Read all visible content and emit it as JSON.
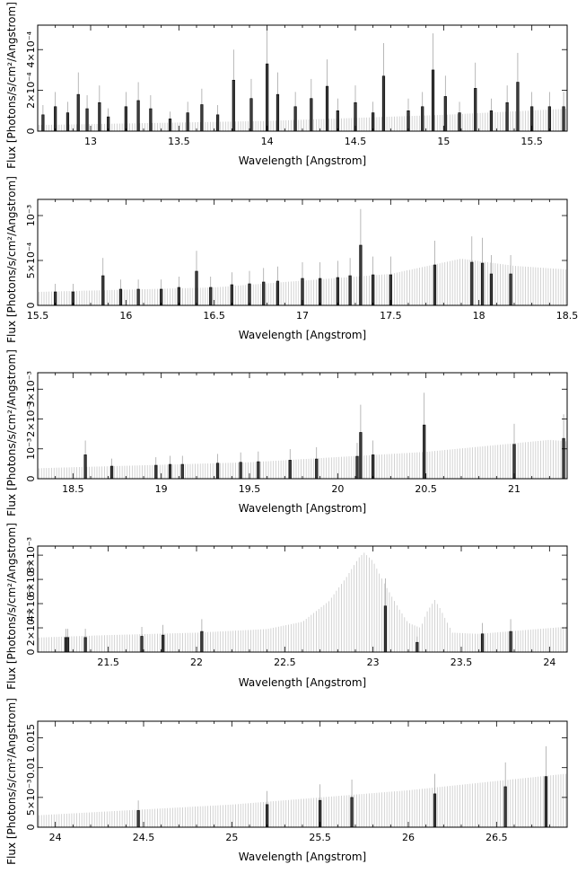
{
  "figure": {
    "xlabel": "Wavelength [Angstrom]",
    "ylabel": "Flux [Photons/s/cm²/Angstrom]"
  },
  "chart_data": [
    {
      "type": "bar",
      "xlabel": "Wavelength [Angstrom]",
      "ylabel": "Flux [Photons/s/cm²/Angstrom]",
      "xlim": [
        12.7,
        15.7
      ],
      "ylim": [
        0,
        0.00052
      ],
      "xticks": [
        13,
        13.5,
        14,
        14.5,
        15,
        15.5
      ],
      "xtick_labels": [
        "13",
        "13.5",
        "14",
        "14.5",
        "15",
        "15.5"
      ],
      "yticks": [
        0,
        0.0002,
        0.0004
      ],
      "ytick_labels": [
        "0",
        "2×10⁻⁴",
        "4×10⁻⁴"
      ],
      "continuum": {
        "x": [
          12.7,
          14.0,
          15.0,
          15.7
        ],
        "y": [
          3e-05,
          5e-05,
          8e-05,
          0.00011
        ]
      },
      "lines": [
        {
          "x": 12.73,
          "y": 8e-05
        },
        {
          "x": 12.8,
          "y": 0.00012
        },
        {
          "x": 12.87,
          "y": 9e-05
        },
        {
          "x": 12.93,
          "y": 0.00018
        },
        {
          "x": 12.98,
          "y": 0.00011
        },
        {
          "x": 13.05,
          "y": 0.00014
        },
        {
          "x": 13.1,
          "y": 7e-05
        },
        {
          "x": 13.2,
          "y": 0.00012
        },
        {
          "x": 13.27,
          "y": 0.00015
        },
        {
          "x": 13.34,
          "y": 0.00011
        },
        {
          "x": 13.45,
          "y": 6e-05
        },
        {
          "x": 13.55,
          "y": 9e-05
        },
        {
          "x": 13.63,
          "y": 0.00013
        },
        {
          "x": 13.72,
          "y": 8e-05
        },
        {
          "x": 13.81,
          "y": 0.00025
        },
        {
          "x": 13.91,
          "y": 0.00016
        },
        {
          "x": 14.0,
          "y": 0.00033
        },
        {
          "x": 14.06,
          "y": 0.00018
        },
        {
          "x": 14.16,
          "y": 0.00012
        },
        {
          "x": 14.25,
          "y": 0.00016
        },
        {
          "x": 14.34,
          "y": 0.00022
        },
        {
          "x": 14.4,
          "y": 0.0001
        },
        {
          "x": 14.5,
          "y": 0.00014
        },
        {
          "x": 14.6,
          "y": 9e-05
        },
        {
          "x": 14.66,
          "y": 0.00027
        },
        {
          "x": 14.8,
          "y": 0.0001
        },
        {
          "x": 14.88,
          "y": 0.00012
        },
        {
          "x": 14.94,
          "y": 0.0003
        },
        {
          "x": 15.01,
          "y": 0.00017
        },
        {
          "x": 15.09,
          "y": 9e-05
        },
        {
          "x": 15.18,
          "y": 0.00021
        },
        {
          "x": 15.27,
          "y": 0.0001
        },
        {
          "x": 15.36,
          "y": 0.00014
        },
        {
          "x": 15.42,
          "y": 0.00024
        },
        {
          "x": 15.5,
          "y": 0.00012
        },
        {
          "x": 15.6,
          "y": 0.00012
        },
        {
          "x": 15.68,
          "y": 0.00012
        }
      ]
    },
    {
      "type": "bar",
      "xlabel": "Wavelength [Angstrom]",
      "ylabel": "Flux [Photons/s/cm²/Angstrom]",
      "xlim": [
        15.5,
        18.5
      ],
      "ylim": [
        0,
        0.00118
      ],
      "xticks": [
        15.5,
        16,
        16.5,
        17,
        17.5,
        18,
        18.5
      ],
      "xtick_labels": [
        "15.5",
        "16",
        "16.5",
        "17",
        "17.5",
        "18",
        "18.5"
      ],
      "yticks": [
        0,
        0.0005,
        0.001
      ],
      "ytick_labels": [
        "0",
        "5×10⁻⁴",
        "10⁻³"
      ],
      "continuum": {
        "x": [
          15.5,
          16.5,
          17.5,
          17.9,
          18.2,
          18.5
        ],
        "y": [
          0.00015,
          0.0002,
          0.00035,
          0.00052,
          0.00044,
          0.0004
        ]
      },
      "lines": [
        {
          "x": 15.6,
          "y": 0.00015
        },
        {
          "x": 15.7,
          "y": 0.00015
        },
        {
          "x": 15.87,
          "y": 0.00033
        },
        {
          "x": 15.97,
          "y": 0.00018
        },
        {
          "x": 16.07,
          "y": 0.00018
        },
        {
          "x": 16.2,
          "y": 0.00018
        },
        {
          "x": 16.3,
          "y": 0.0002
        },
        {
          "x": 16.4,
          "y": 0.00038
        },
        {
          "x": 16.48,
          "y": 0.0002
        },
        {
          "x": 16.6,
          "y": 0.00023
        },
        {
          "x": 16.7,
          "y": 0.00024
        },
        {
          "x": 16.78,
          "y": 0.00026
        },
        {
          "x": 16.86,
          "y": 0.00027
        },
        {
          "x": 17.0,
          "y": 0.0003
        },
        {
          "x": 17.1,
          "y": 0.0003
        },
        {
          "x": 17.2,
          "y": 0.00031
        },
        {
          "x": 17.27,
          "y": 0.00033
        },
        {
          "x": 17.33,
          "y": 0.00067
        },
        {
          "x": 17.4,
          "y": 0.00034
        },
        {
          "x": 17.5,
          "y": 0.00034
        },
        {
          "x": 17.75,
          "y": 0.00045
        },
        {
          "x": 17.96,
          "y": 0.00048
        },
        {
          "x": 18.02,
          "y": 0.00047
        },
        {
          "x": 18.07,
          "y": 0.00035
        },
        {
          "x": 18.18,
          "y": 0.00035
        }
      ]
    },
    {
      "type": "bar",
      "xlabel": "Wavelength [Angstrom]",
      "ylabel": "Flux [Photons/s/cm²/Angstrom]",
      "xlim": [
        18.3,
        21.3
      ],
      "ylim": [
        0,
        0.00355
      ],
      "xticks": [
        18.5,
        19,
        19.5,
        20,
        20.5,
        21
      ],
      "xtick_labels": [
        "18.5",
        "19",
        "19.5",
        "20",
        "20.5",
        "21"
      ],
      "yticks": [
        0,
        0.001,
        0.002,
        0.003
      ],
      "ytick_labels": [
        "0",
        "10⁻³",
        "2×10⁻³",
        "3×10⁻³"
      ],
      "continuum": {
        "x": [
          18.3,
          19.5,
          20.5,
          21.2,
          21.3
        ],
        "y": [
          0.00035,
          0.00055,
          0.0009,
          0.0013,
          0.00125
        ]
      },
      "lines": [
        {
          "x": 18.57,
          "y": 0.0008
        },
        {
          "x": 18.72,
          "y": 0.00042
        },
        {
          "x": 18.97,
          "y": 0.00045
        },
        {
          "x": 19.05,
          "y": 0.00048
        },
        {
          "x": 19.12,
          "y": 0.00048
        },
        {
          "x": 19.32,
          "y": 0.00052
        },
        {
          "x": 19.45,
          "y": 0.00055
        },
        {
          "x": 19.55,
          "y": 0.00057
        },
        {
          "x": 19.73,
          "y": 0.00062
        },
        {
          "x": 19.88,
          "y": 0.00066
        },
        {
          "x": 20.11,
          "y": 0.00075
        },
        {
          "x": 20.13,
          "y": 0.00155
        },
        {
          "x": 20.2,
          "y": 0.0008
        },
        {
          "x": 20.49,
          "y": 0.0018
        },
        {
          "x": 21.0,
          "y": 0.00115
        },
        {
          "x": 21.28,
          "y": 0.00135
        }
      ]
    },
    {
      "type": "bar",
      "xlabel": "Wavelength [Angstrom]",
      "ylabel": "Flux [Photons/s/cm²/Angstrom]",
      "xlim": [
        21.1,
        24.1
      ],
      "ylim": [
        0,
        0.00875
      ],
      "xticks": [
        21.5,
        22,
        22.5,
        23,
        23.5,
        24
      ],
      "xtick_labels": [
        "21.5",
        "22",
        "22.5",
        "23",
        "23.5",
        "24"
      ],
      "yticks": [
        0,
        0.002,
        0.004,
        0.006,
        0.008
      ],
      "ytick_labels": [
        "0",
        "2×10⁻³",
        "4×10⁻³",
        "6×10⁻³",
        "8×10⁻³"
      ],
      "continuum": {
        "x": [
          21.1,
          21.5,
          22.0,
          22.4,
          22.6,
          22.75,
          22.85,
          22.92,
          22.95,
          23.0,
          23.07,
          23.15,
          23.2,
          23.27,
          23.3,
          23.35,
          23.38,
          23.45,
          23.6,
          24.1
        ],
        "y": [
          0.0012,
          0.0014,
          0.0016,
          0.0019,
          0.0025,
          0.0042,
          0.0062,
          0.0078,
          0.0082,
          0.0075,
          0.0055,
          0.0035,
          0.0024,
          0.002,
          0.0032,
          0.0043,
          0.0036,
          0.0016,
          0.0015,
          0.0021
        ]
      },
      "lines": [
        {
          "x": 21.26,
          "y": 0.0012
        },
        {
          "x": 21.27,
          "y": 0.0012
        },
        {
          "x": 21.37,
          "y": 0.0012
        },
        {
          "x": 21.69,
          "y": 0.0013
        },
        {
          "x": 21.81,
          "y": 0.0014
        },
        {
          "x": 22.03,
          "y": 0.0017
        },
        {
          "x": 23.07,
          "y": 0.0038
        },
        {
          "x": 23.25,
          "y": 0.0008
        },
        {
          "x": 23.62,
          "y": 0.0015
        },
        {
          "x": 23.78,
          "y": 0.0017
        }
      ]
    },
    {
      "type": "bar",
      "xlabel": "Wavelength [Angstrom]",
      "ylabel": "Flux [Photons/s/cm²/Angstrom]",
      "xlim": [
        23.9,
        26.9
      ],
      "ylim": [
        0,
        0.0178
      ],
      "xticks": [
        24,
        24.5,
        25,
        25.5,
        26,
        26.5
      ],
      "xtick_labels": [
        "24",
        "24.5",
        "25",
        "25.5",
        "26",
        "26.5"
      ],
      "yticks": [
        0,
        0.005,
        0.01,
        0.015
      ],
      "ytick_labels": [
        "0",
        "5×10⁻³",
        "0.01",
        "0.015"
      ],
      "continuum": {
        "x": [
          23.9,
          25.0,
          26.0,
          26.9
        ],
        "y": [
          0.002,
          0.0038,
          0.0062,
          0.009
        ]
      },
      "lines": [
        {
          "x": 24.47,
          "y": 0.0028
        },
        {
          "x": 25.2,
          "y": 0.0038
        },
        {
          "x": 25.5,
          "y": 0.0045
        },
        {
          "x": 25.68,
          "y": 0.005
        },
        {
          "x": 26.15,
          "y": 0.0056
        },
        {
          "x": 26.55,
          "y": 0.0068
        },
        {
          "x": 26.78,
          "y": 0.0085
        }
      ]
    }
  ]
}
